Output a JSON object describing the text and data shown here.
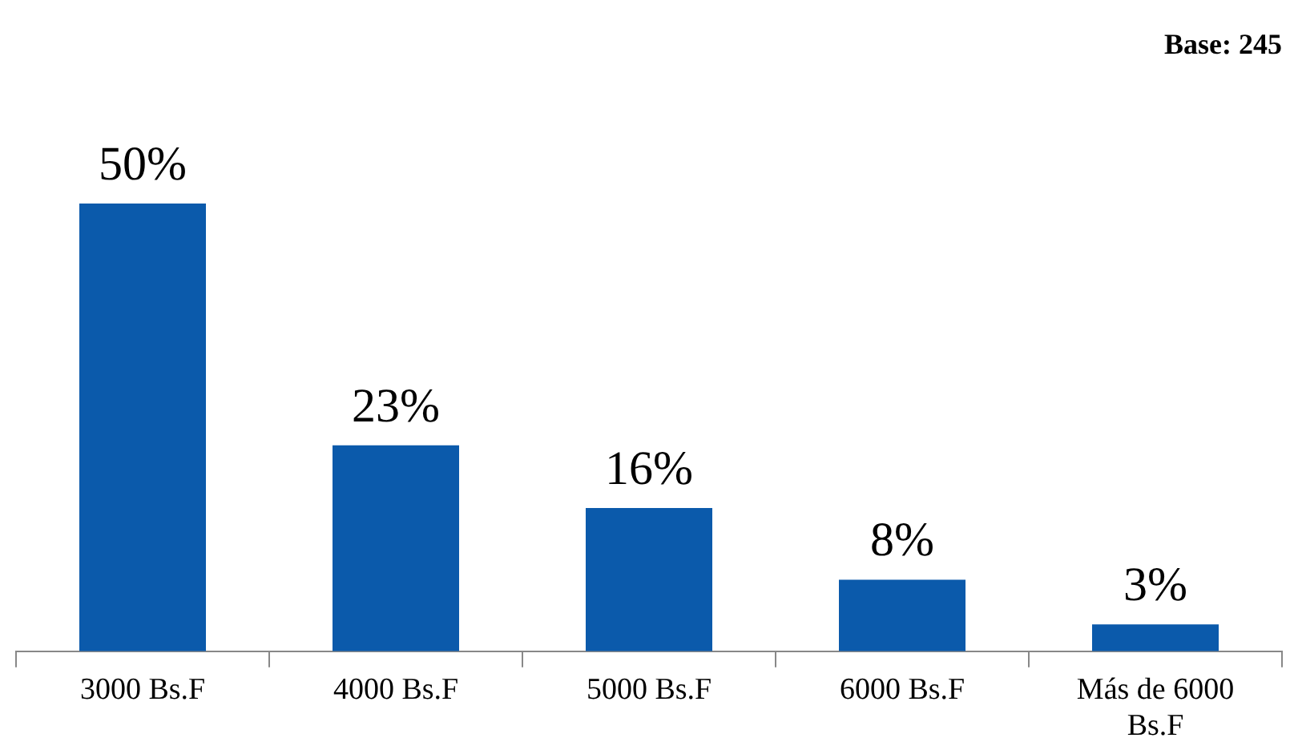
{
  "chart_data": {
    "type": "bar",
    "categories": [
      "3000 Bs.F",
      "4000 Bs.F",
      "5000 Bs.F",
      "6000 Bs.F",
      "Más de 6000 Bs.F"
    ],
    "values": [
      50,
      23,
      16,
      8,
      3
    ],
    "value_labels": [
      "50%",
      "23%",
      "16%",
      "8%",
      "3%"
    ],
    "color": "#0b5aab",
    "annotations": [
      "Base: 245"
    ],
    "grid": false,
    "legend": false
  }
}
